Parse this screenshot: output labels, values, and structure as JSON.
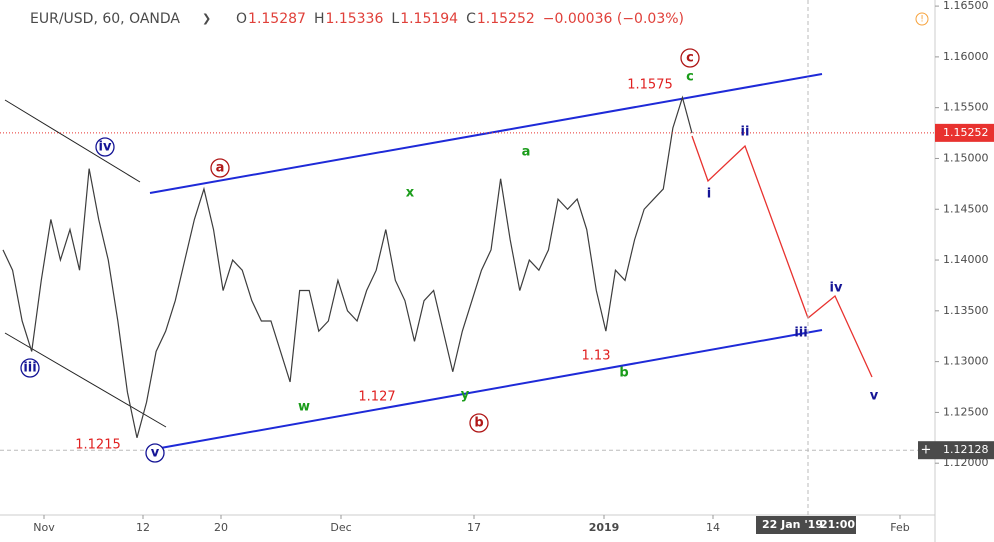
{
  "chart_data": {
    "type": "line",
    "header": {
      "symbol": "EUR/USD, 60, OANDA",
      "ohlc": [
        {
          "key": "O",
          "value": "1.15287"
        },
        {
          "key": "H",
          "value": "1.15336"
        },
        {
          "key": "L",
          "value": "1.15194"
        },
        {
          "key": "C",
          "value": "1.15252"
        }
      ],
      "change": "−0.00036 (−0.03%)"
    },
    "series": [
      {
        "name": "EUR/USD",
        "color": "#3d3d3d",
        "values": [
          1.141,
          1.139,
          1.134,
          1.131,
          1.138,
          1.144,
          1.14,
          1.143,
          1.139,
          1.149,
          1.144,
          1.14,
          1.134,
          1.127,
          1.1225,
          1.126,
          1.131,
          1.133,
          1.136,
          1.14,
          1.144,
          1.147,
          1.143,
          1.137,
          1.14,
          1.139,
          1.136,
          1.134,
          1.134,
          1.131,
          1.128,
          1.137,
          1.137,
          1.133,
          1.134,
          1.138,
          1.135,
          1.134,
          1.137,
          1.139,
          1.143,
          1.138,
          1.136,
          1.132,
          1.136,
          1.137,
          1.133,
          1.129,
          1.133,
          1.136,
          1.139,
          1.141,
          1.148,
          1.142,
          1.137,
          1.14,
          1.139,
          1.141,
          1.146,
          1.145,
          1.146,
          1.143,
          1.137,
          1.133,
          1.139,
          1.138,
          1.142,
          1.145,
          1.146,
          1.147,
          1.153,
          1.156,
          1.1525
        ]
      }
    ],
    "ylim": [
      1.1149,
      1.1656
    ],
    "yticks": [
      {
        "value": 1.12,
        "label": "1.12000"
      },
      {
        "value": 1.125,
        "label": "1.12500"
      },
      {
        "value": 1.13,
        "label": "1.13000"
      },
      {
        "value": 1.135,
        "label": "1.13500"
      },
      {
        "value": 1.14,
        "label": "1.14000"
      },
      {
        "value": 1.145,
        "label": "1.14500"
      },
      {
        "value": 1.15,
        "label": "1.15000"
      },
      {
        "value": 1.155,
        "label": "1.15500"
      },
      {
        "value": 1.16,
        "label": "1.16000"
      },
      {
        "value": 1.165,
        "label": "1.16500"
      }
    ],
    "xticks": [
      "Nov",
      "12",
      "20",
      "Dec",
      "17",
      "2019",
      "14",
      "Feb"
    ],
    "last_price": {
      "value": 1.15252,
      "label": "1.15252"
    },
    "crosshair": {
      "value": 1.12128,
      "label": "1.12128",
      "date": "22 Jan '19",
      "time": "21:00"
    },
    "annotations": [
      "iv",
      "iii",
      "v",
      "a",
      "b",
      "c",
      "w",
      "x",
      "y",
      "a",
      "b",
      "c",
      "i",
      "ii",
      "iii",
      "iv",
      "v",
      "1.1575",
      "1.127",
      "1.13",
      "1.1215"
    ]
  }
}
